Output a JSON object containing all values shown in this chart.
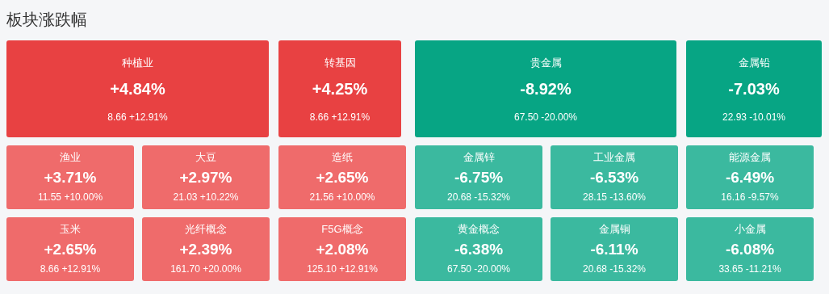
{
  "chart_data": {
    "type": "other",
    "title": "板块涨跌幅",
    "categories": [
      "种植业",
      "转基因",
      "贵金属",
      "金属铅",
      "渔业",
      "大豆",
      "造纸",
      "金属锌",
      "工业金属",
      "能源金属",
      "玉米",
      "光纤概念",
      "F5G概念",
      "黄金概念",
      "金属铜",
      "小金属"
    ],
    "values": [
      4.84,
      4.25,
      -8.92,
      -7.03,
      3.71,
      2.97,
      2.65,
      -6.75,
      -6.53,
      -6.49,
      2.65,
      2.39,
      2.08,
      -6.38,
      -6.11,
      -6.08
    ],
    "value_labels": [
      "+4.84%",
      "+4.25%",
      "-8.92%",
      "-7.03%",
      "+3.71%",
      "+2.97%",
      "+2.65%",
      "-6.75%",
      "-6.53%",
      "-6.49%",
      "+2.65%",
      "+2.39%",
      "+2.08%",
      "-6.38%",
      "-6.11%",
      "-6.08%"
    ],
    "annotations": [
      "8.66 +12.91%",
      "8.66 +12.91%",
      "67.50 -20.00%",
      "22.93 -10.01%",
      "11.55 +10.00%",
      "21.03 +10.22%",
      "21.56 +10.00%",
      "20.68 -15.32%",
      "28.15 -13.60%",
      "16.16 -9.57%",
      "8.66 +12.91%",
      "161.70 +20.00%",
      "125.10 +12.91%",
      "67.50 -20.00%",
      "20.68 -15.32%",
      "33.65 -11.21%"
    ]
  }
}
